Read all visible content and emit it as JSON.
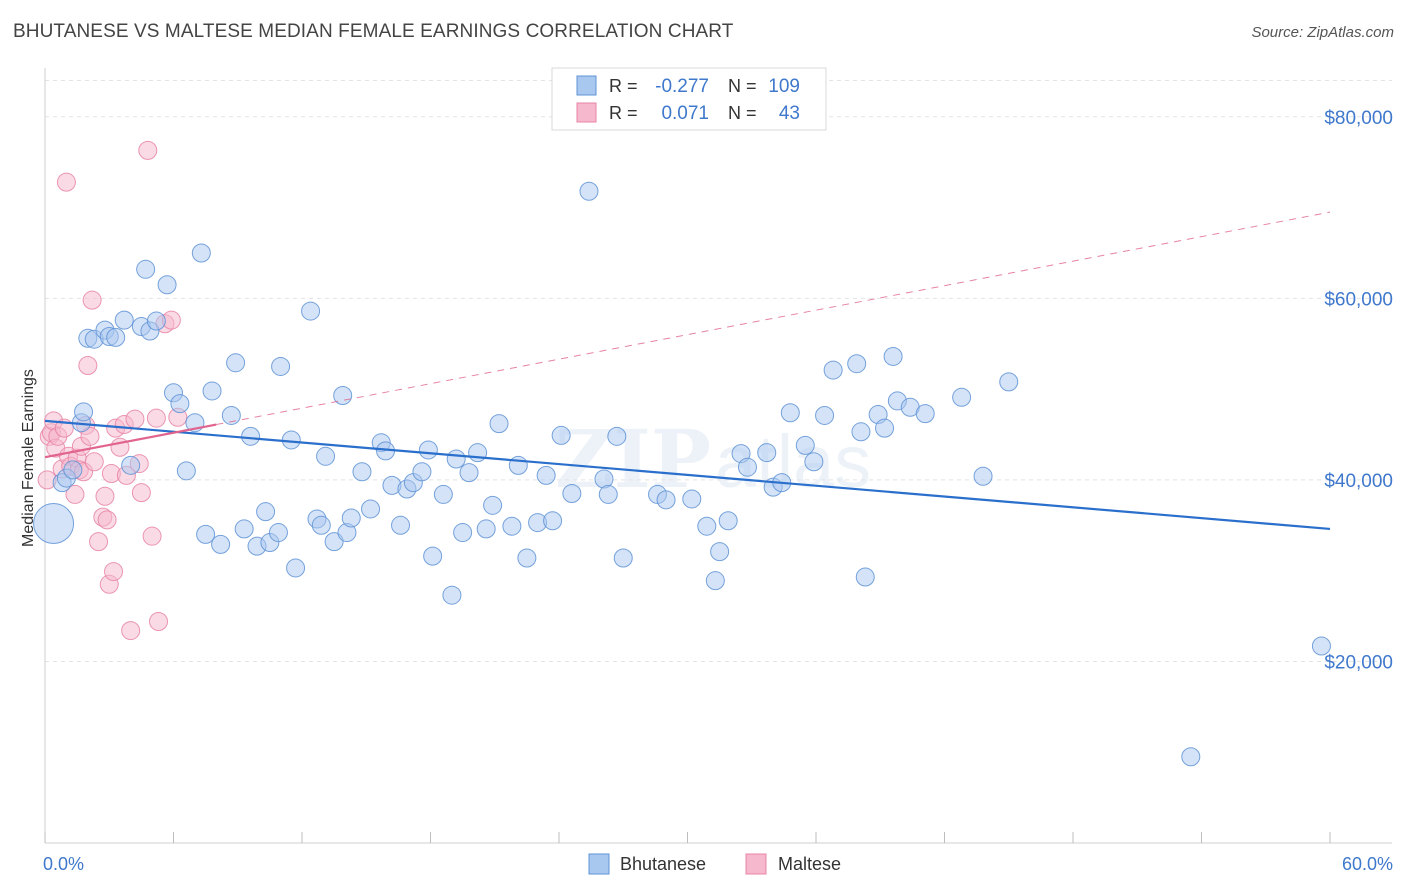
{
  "title": "BHUTANESE VS MALTESE MEDIAN FEMALE EARNINGS CORRELATION CHART",
  "source": "Source: ZipAtlas.com",
  "watermark": {
    "zip": "ZIP",
    "atlas": "atlas"
  },
  "colors": {
    "bhutanese_fill": "#a9c8ef",
    "bhutanese_stroke": "#5f93d6",
    "bhutanese_line": "#2a6fcc",
    "maltese_fill": "#f6b8cc",
    "maltese_stroke": "#e884a6",
    "maltese_line": "#e0648d",
    "axis_text_blue": "#3f78cc",
    "grid": "#e3e3e3"
  },
  "legend": {
    "rows": [
      {
        "r_label": "R =",
        "r_value": "-0.277",
        "n_label": "N =",
        "n_value": "109"
      },
      {
        "r_label": "R =",
        "r_value": "0.071",
        "n_label": "N =",
        "n_value": "43"
      }
    ]
  },
  "bottom_legend": [
    "Bhutanese",
    "Maltese"
  ],
  "chart_data": {
    "type": "scatter",
    "title": "BHUTANESE VS MALTESE MEDIAN FEMALE EARNINGS CORRELATION CHART",
    "xlabel": "",
    "ylabel": "Median Female Earnings",
    "xlim": [
      0,
      60
    ],
    "ylim": [
      0,
      84000
    ],
    "x_tick_labels": [
      "0.0%",
      "60.0%"
    ],
    "y_ticks": [
      20000,
      40000,
      60000,
      80000
    ],
    "y_tick_labels": [
      "$20,000",
      "$40,000",
      "$60,000",
      "$80,000"
    ],
    "grid": true,
    "series": [
      {
        "name": "Bhutanese",
        "r": -0.277,
        "n": 109,
        "trend": {
          "x": [
            0,
            60
          ],
          "y": [
            46500,
            34600
          ],
          "solid_until": 60
        },
        "points": [
          [
            0.4,
            35200
          ],
          [
            0.8,
            39700
          ],
          [
            1.0,
            40200
          ],
          [
            1.3,
            41100
          ],
          [
            1.7,
            46300
          ],
          [
            1.8,
            47500
          ],
          [
            2.0,
            55600
          ],
          [
            2.3,
            55500
          ],
          [
            2.8,
            56500
          ],
          [
            3.0,
            55800
          ],
          [
            3.3,
            55700
          ],
          [
            3.7,
            57600
          ],
          [
            4.0,
            41600
          ],
          [
            4.5,
            56900
          ],
          [
            4.7,
            63200
          ],
          [
            4.9,
            56400
          ],
          [
            5.2,
            57500
          ],
          [
            5.7,
            61500
          ],
          [
            6.0,
            49600
          ],
          [
            6.3,
            48400
          ],
          [
            6.6,
            41000
          ],
          [
            7.0,
            46300
          ],
          [
            7.3,
            65000
          ],
          [
            7.5,
            34000
          ],
          [
            7.8,
            49800
          ],
          [
            8.2,
            32900
          ],
          [
            8.7,
            47100
          ],
          [
            8.9,
            52900
          ],
          [
            9.3,
            34600
          ],
          [
            9.6,
            44800
          ],
          [
            9.9,
            32700
          ],
          [
            10.3,
            36500
          ],
          [
            10.5,
            33100
          ],
          [
            10.9,
            34200
          ],
          [
            11.0,
            52500
          ],
          [
            11.5,
            44400
          ],
          [
            11.7,
            30300
          ],
          [
            12.4,
            58600
          ],
          [
            12.7,
            35700
          ],
          [
            12.9,
            35000
          ],
          [
            13.1,
            42600
          ],
          [
            13.5,
            33200
          ],
          [
            13.9,
            49300
          ],
          [
            14.1,
            34200
          ],
          [
            14.3,
            35800
          ],
          [
            14.8,
            40900
          ],
          [
            15.2,
            36800
          ],
          [
            15.7,
            44100
          ],
          [
            15.9,
            43200
          ],
          [
            16.2,
            39400
          ],
          [
            16.6,
            35000
          ],
          [
            16.9,
            39000
          ],
          [
            17.2,
            39700
          ],
          [
            17.6,
            40900
          ],
          [
            17.9,
            43300
          ],
          [
            18.1,
            31600
          ],
          [
            18.6,
            38400
          ],
          [
            19.0,
            27300
          ],
          [
            19.2,
            42300
          ],
          [
            19.5,
            34200
          ],
          [
            19.8,
            40800
          ],
          [
            20.2,
            43000
          ],
          [
            20.6,
            34600
          ],
          [
            20.9,
            37200
          ],
          [
            21.2,
            46200
          ],
          [
            21.8,
            34900
          ],
          [
            22.1,
            41600
          ],
          [
            22.5,
            31400
          ],
          [
            23.0,
            35300
          ],
          [
            23.4,
            40500
          ],
          [
            23.7,
            35500
          ],
          [
            24.1,
            44900
          ],
          [
            24.6,
            38500
          ],
          [
            25.4,
            71800
          ],
          [
            26.1,
            40100
          ],
          [
            26.3,
            38400
          ],
          [
            26.7,
            44800
          ],
          [
            27.0,
            31400
          ],
          [
            28.6,
            38400
          ],
          [
            29.0,
            37800
          ],
          [
            30.2,
            37900
          ],
          [
            30.9,
            34900
          ],
          [
            31.3,
            28900
          ],
          [
            31.5,
            32100
          ],
          [
            31.9,
            35500
          ],
          [
            32.5,
            42900
          ],
          [
            32.8,
            41400
          ],
          [
            33.7,
            43000
          ],
          [
            34.0,
            39200
          ],
          [
            34.4,
            39700
          ],
          [
            34.8,
            47400
          ],
          [
            35.5,
            43800
          ],
          [
            35.9,
            42000
          ],
          [
            36.4,
            47100
          ],
          [
            36.8,
            52100
          ],
          [
            37.9,
            52800
          ],
          [
            38.1,
            45300
          ],
          [
            38.3,
            29300
          ],
          [
            38.9,
            47200
          ],
          [
            39.2,
            45700
          ],
          [
            39.6,
            53600
          ],
          [
            39.8,
            48700
          ],
          [
            40.4,
            48000
          ],
          [
            41.1,
            47300
          ],
          [
            42.8,
            49100
          ],
          [
            43.8,
            40400
          ],
          [
            45.0,
            50800
          ],
          [
            53.5,
            9500
          ],
          [
            59.6,
            21700
          ]
        ]
      },
      {
        "name": "Maltese",
        "r": 0.071,
        "n": 43,
        "trend": {
          "x": [
            0,
            60
          ],
          "y": [
            42500,
            69500
          ],
          "solid_until": 8
        },
        "points": [
          [
            0.1,
            40000
          ],
          [
            0.2,
            44800
          ],
          [
            0.3,
            45200
          ],
          [
            0.4,
            46500
          ],
          [
            0.5,
            43500
          ],
          [
            0.6,
            44800
          ],
          [
            0.8,
            41200
          ],
          [
            0.9,
            45700
          ],
          [
            1.0,
            72800
          ],
          [
            1.1,
            42600
          ],
          [
            1.2,
            41500
          ],
          [
            1.4,
            38400
          ],
          [
            1.5,
            42400
          ],
          [
            1.6,
            41100
          ],
          [
            1.7,
            43700
          ],
          [
            1.8,
            40900
          ],
          [
            1.9,
            46000
          ],
          [
            2.0,
            52600
          ],
          [
            2.1,
            44800
          ],
          [
            2.2,
            59800
          ],
          [
            2.3,
            42000
          ],
          [
            2.5,
            33200
          ],
          [
            2.7,
            35900
          ],
          [
            2.8,
            38200
          ],
          [
            2.9,
            35600
          ],
          [
            3.0,
            28500
          ],
          [
            3.1,
            40700
          ],
          [
            3.2,
            29900
          ],
          [
            3.3,
            45700
          ],
          [
            3.5,
            43600
          ],
          [
            3.7,
            46100
          ],
          [
            3.8,
            40500
          ],
          [
            4.0,
            23400
          ],
          [
            4.2,
            46700
          ],
          [
            4.4,
            41800
          ],
          [
            4.5,
            38600
          ],
          [
            4.8,
            76300
          ],
          [
            5.0,
            33800
          ],
          [
            5.2,
            46800
          ],
          [
            5.3,
            24400
          ],
          [
            5.6,
            57200
          ],
          [
            5.9,
            57600
          ],
          [
            6.2,
            46900
          ]
        ]
      }
    ]
  }
}
